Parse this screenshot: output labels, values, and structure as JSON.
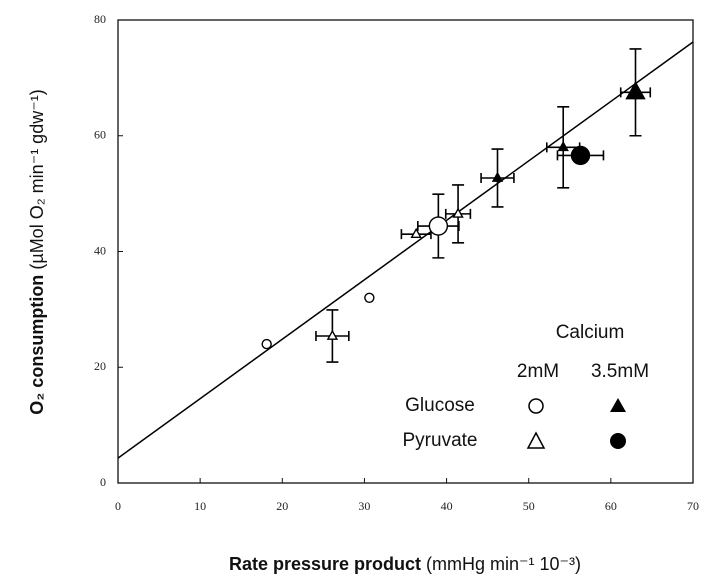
{
  "chart_data": {
    "type": "scatter",
    "xlabel": [
      "Rate pressure product",
      "(mmHg min⁻¹  10⁻³)"
    ],
    "ylabel": [
      "O₂ consumption",
      "(µMol O₂ min⁻¹ gdw⁻¹)"
    ],
    "xlim": [
      0,
      70
    ],
    "xticks": [
      0,
      10,
      20,
      30,
      40,
      50,
      60,
      70
    ],
    "ylim": [
      0,
      80
    ],
    "yticks": [
      0,
      20,
      40,
      60,
      80
    ],
    "color": "#000000",
    "fit_line": {
      "x": [
        0,
        70
      ],
      "y": [
        4.3,
        76.2
      ]
    },
    "points": {
      "x": [
        18.1,
        30.6,
        26.1,
        36.3,
        39.0,
        41.4,
        46.2,
        54.2,
        56.3,
        63.0
      ],
      "y": [
        24.0,
        32.0,
        25.4,
        43.0,
        44.4,
        46.5,
        52.7,
        58.0,
        56.6,
        67.5
      ],
      "xerr": [
        null,
        null,
        2.0,
        1.8,
        2.5,
        1.5,
        2.0,
        2.0,
        2.8,
        1.8
      ],
      "yerr": [
        null,
        null,
        4.5,
        null,
        5.5,
        5.0,
        5.0,
        7.0,
        null,
        7.5
      ],
      "marker": [
        "circle",
        "circle",
        "triangle",
        "triangle",
        "circle",
        "triangle",
        "triangle",
        "triangle",
        "circle",
        "triangle"
      ],
      "filled": [
        false,
        false,
        false,
        false,
        false,
        false,
        true,
        true,
        true,
        true
      ],
      "size": [
        "small",
        "small",
        "small",
        "small",
        "large",
        "small",
        "small",
        "small",
        "large",
        "large"
      ]
    },
    "legend": {
      "title": "Calcium",
      "columns": [
        "2mM",
        "3.5mM"
      ],
      "rows": [
        "Glucose",
        "Pyruvate"
      ]
    }
  }
}
